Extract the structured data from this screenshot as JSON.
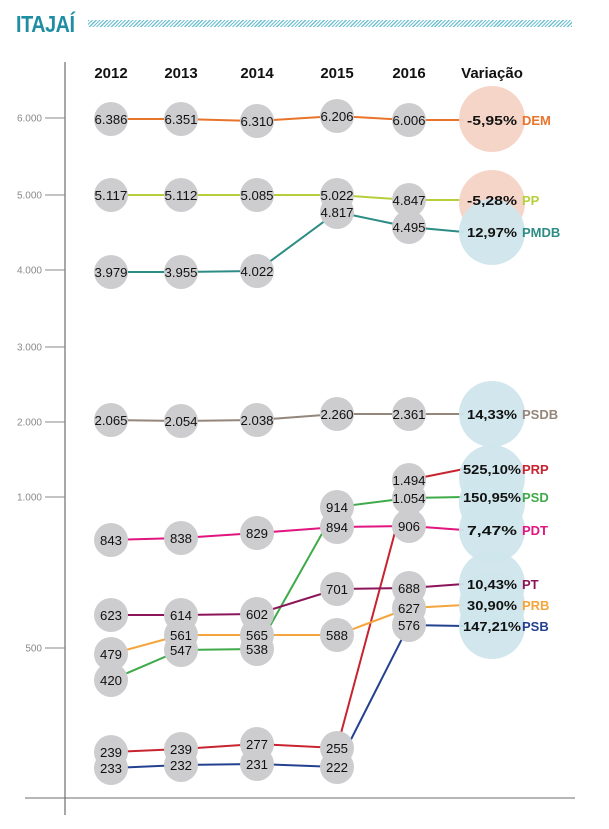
{
  "title": "ITAJAÍ",
  "chart_data": {
    "type": "line",
    "title": "ITAJAÍ",
    "categories": [
      "2012",
      "2013",
      "2014",
      "2015",
      "2016"
    ],
    "variation_header": "Variação",
    "y_ticks": [
      "6.000",
      "5.000",
      "4.000",
      "3.000",
      "2.000",
      "1.000",
      "500"
    ],
    "y_tick_values": [
      6000,
      5000,
      4000,
      3000,
      2000,
      1000,
      500
    ],
    "series": [
      {
        "name": "DEM",
        "color": "#e8732a",
        "values": [
          6386,
          6351,
          6310,
          6206,
          6006
        ],
        "labels": [
          "6.386",
          "6.351",
          "6.310",
          "6.206",
          "6.006"
        ],
        "variation": "-5,95%",
        "var_bg": "#f5d3c6"
      },
      {
        "name": "PP",
        "color": "#b5cf3b",
        "values": [
          5117,
          5112,
          5085,
          5022,
          4847
        ],
        "labels": [
          "5.117",
          "5.112",
          "5.085",
          "5.022",
          "4.847"
        ],
        "variation": "-5,28%",
        "var_bg": "#f5d3c6"
      },
      {
        "name": "PMDB",
        "color": "#2d8c85",
        "values": [
          3979,
          3955,
          4022,
          4817,
          4495
        ],
        "labels": [
          "3.979",
          "3.955",
          "4.022",
          "4.817",
          "4.495"
        ],
        "variation": "12,97%",
        "var_bg": "#cfe6ec"
      },
      {
        "name": "PSDB",
        "color": "#94867a",
        "values": [
          2065,
          2054,
          2038,
          2260,
          2361
        ],
        "labels": [
          "2.065",
          "2.054",
          "2.038",
          "2.260",
          "2.361"
        ],
        "variation": "14,33%",
        "var_bg": "#cfe6ec"
      },
      {
        "name": "PRP",
        "color": "#c8232f",
        "values": [
          239,
          239,
          277,
          255,
          1494
        ],
        "labels": [
          "239",
          "239",
          "277",
          "255",
          "1.494"
        ],
        "variation": "525,10%",
        "var_bg": "#cfe6ec"
      },
      {
        "name": "PSD",
        "color": "#3eaa49",
        "values": [
          420,
          547,
          538,
          914,
          1054
        ],
        "labels": [
          "420",
          "547",
          "538",
          "914",
          "1.054"
        ],
        "variation": "150,95%",
        "var_bg": "#cfe6ec"
      },
      {
        "name": "PDT",
        "color": "#e0157f",
        "values": [
          843,
          838,
          829,
          894,
          906
        ],
        "labels": [
          "843",
          "838",
          "829",
          "894",
          "906"
        ],
        "variation": "7,47%",
        "var_bg": "#cfe6ec"
      },
      {
        "name": "PT",
        "color": "#8c1459",
        "values": [
          623,
          614,
          602,
          701,
          688
        ],
        "labels": [
          "623",
          "614",
          "602",
          "701",
          "688"
        ],
        "variation": "10,43%",
        "var_bg": "#cfe6ec"
      },
      {
        "name": "PRB",
        "color": "#f4a53b",
        "values": [
          479,
          561,
          565,
          588,
          627
        ],
        "labels": [
          "479",
          "561",
          "565",
          "588",
          "627"
        ],
        "variation": "30,90%",
        "var_bg": "#cfe6ec"
      },
      {
        "name": "PSB",
        "color": "#23418e",
        "values": [
          233,
          232,
          231,
          222,
          576
        ],
        "labels": [
          "233",
          "232",
          "231",
          "222",
          "576"
        ],
        "variation": "147,21%",
        "var_bg": "#cfe6ec"
      }
    ]
  }
}
